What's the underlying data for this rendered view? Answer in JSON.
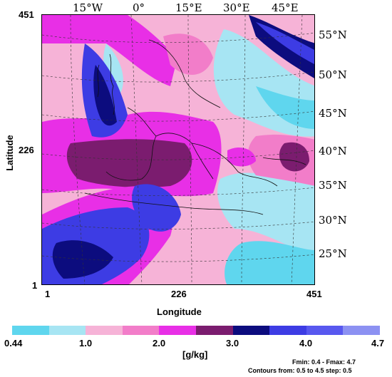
{
  "top_lon_labels": [
    "15°W",
    "0°",
    "15°E",
    "30°E",
    "45°E"
  ],
  "right_lat_labels": [
    "55°N",
    "50°N",
    "45°N",
    "40°N",
    "35°N",
    "30°N",
    "25°N"
  ],
  "y_ticks": [
    "451",
    "226",
    "1"
  ],
  "x_ticks": [
    "1",
    "226",
    "451"
  ],
  "ylabel": "Latitude",
  "xlabel": "Longitude",
  "colorbar": {
    "colors": [
      "#5fd6ee",
      "#a7e5f3",
      "#f6b3d7",
      "#f27dc9",
      "#e82fe6",
      "#7b1c6f",
      "#0c0c7e",
      "#3d3ce4",
      "#5858ef",
      "#8c91f2"
    ],
    "tick_labels": [
      "0.44",
      "1.0",
      "2.0",
      "3.0",
      "4.0",
      "4.7"
    ],
    "unit": "[g/kg]"
  },
  "footnotes": {
    "minmax": "Fmin:   0.4 - Fmax:   4.7",
    "contours": "Contours from:   0.5  to   4.5  step:   0.5"
  }
}
